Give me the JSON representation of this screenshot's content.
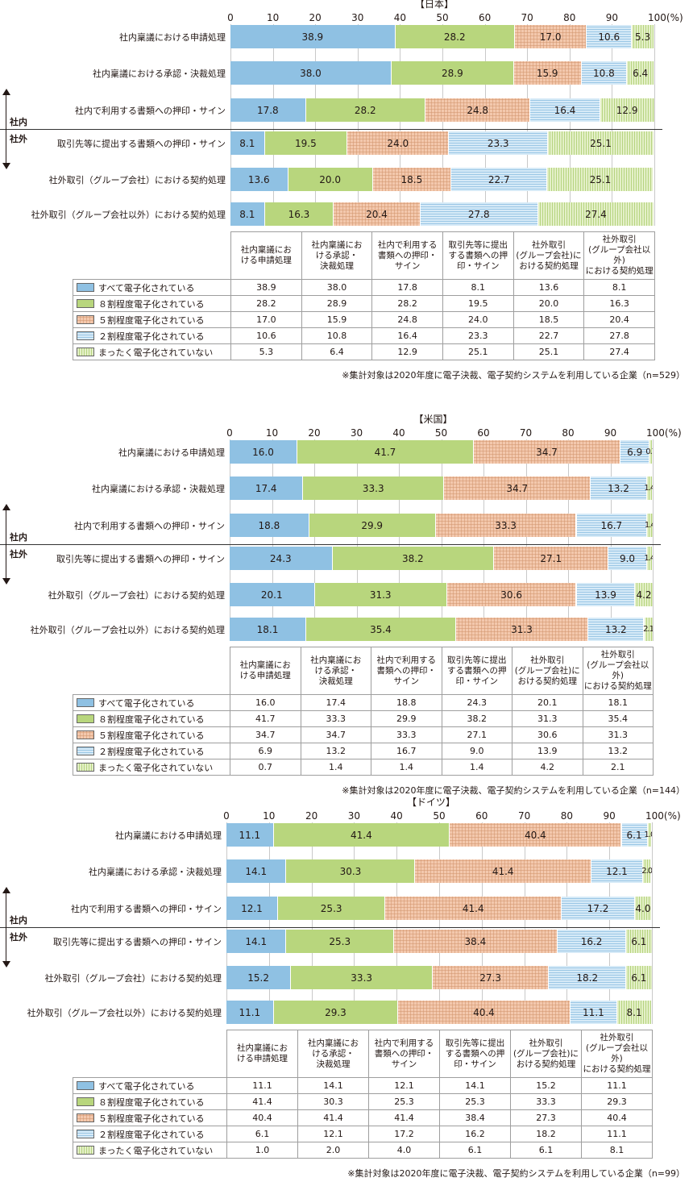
{
  "x_axis": {
    "ticks": [
      "0",
      "10",
      "20",
      "30",
      "40",
      "50",
      "60",
      "70",
      "80",
      "90",
      "100(%)"
    ]
  },
  "inside_label": "社内",
  "outside_label": "社外",
  "table_headers": [
    [
      "社内稟議にお",
      "ける申請処理"
    ],
    [
      "社内稟議にお",
      "ける承認・",
      "決裁処理"
    ],
    [
      "社内で利用する",
      "書類への押印・",
      "サイン"
    ],
    [
      "取引先等に提出",
      "する書類への押",
      "印・サイン"
    ],
    [
      "社外取引",
      "(グループ会社)に",
      "おける契約処理"
    ],
    [
      "社外取引",
      "(グループ会社以外)",
      "における契約処理"
    ]
  ],
  "colors": {
    "s1": "#8fc1e3",
    "s2": "#b8d67d",
    "s3": "#f3c8ad",
    "s4": "#d6eaf7",
    "s5": "#e4f0c8"
  },
  "chart_data": [
    {
      "type": "bar",
      "orientation": "horizontal-stacked",
      "title": "【日本】",
      "categories": [
        "社内稟議における申請処理",
        "社内稟議における承認・決裁処理",
        "社内で利用する書類への押印・サイン",
        "取引先等に提出する書類への押印・サイン",
        "社外取引（グループ会社）における契約処理",
        "社外取引（グループ会社以外）における契約処理"
      ],
      "xlim": [
        0,
        100
      ],
      "series": [
        {
          "name": "すべて電子化されている",
          "values": [
            38.9,
            38.0,
            17.8,
            8.1,
            13.6,
            8.1
          ]
        },
        {
          "name": "８割程度電子化されている",
          "values": [
            28.2,
            28.9,
            28.2,
            19.5,
            20.0,
            16.3
          ]
        },
        {
          "name": "５割程度電子化されている",
          "values": [
            17.0,
            15.9,
            24.8,
            24.0,
            18.5,
            20.4
          ]
        },
        {
          "name": "２割程度電子化されている",
          "values": [
            10.6,
            10.8,
            16.4,
            23.3,
            22.7,
            27.8
          ]
        },
        {
          "name": "まったく電子化されていない",
          "values": [
            5.3,
            6.4,
            12.9,
            25.1,
            25.1,
            27.4
          ]
        }
      ],
      "note": "※集計対象は2020年度に電子決裁、電子契約システムを利用している企業（n=529）"
    },
    {
      "type": "bar",
      "orientation": "horizontal-stacked",
      "title": "【米国】",
      "categories": [
        "社内稟議における申請処理",
        "社内稟議における承認・決裁処理",
        "社内で利用する書類への押印・サイン",
        "取引先等に提出する書類への押印・サイン",
        "社外取引（グループ会社）における契約処理",
        "社外取引（グループ会社以外）における契約処理"
      ],
      "xlim": [
        0,
        100
      ],
      "series": [
        {
          "name": "すべて電子化されている",
          "values": [
            16.0,
            17.4,
            18.8,
            24.3,
            20.1,
            18.1
          ]
        },
        {
          "name": "８割程度電子化されている",
          "values": [
            41.7,
            33.3,
            29.9,
            38.2,
            31.3,
            35.4
          ]
        },
        {
          "name": "５割程度電子化されている",
          "values": [
            34.7,
            34.7,
            33.3,
            27.1,
            30.6,
            31.3
          ]
        },
        {
          "name": "２割程度電子化されている",
          "values": [
            6.9,
            13.2,
            16.7,
            9.0,
            13.9,
            13.2
          ]
        },
        {
          "name": "まったく電子化されていない",
          "values": [
            0.7,
            1.4,
            1.4,
            1.4,
            4.2,
            2.1
          ]
        }
      ],
      "note": "※集計対象は2020年度に電子決裁、電子契約システムを利用している企業（n=144）"
    },
    {
      "type": "bar",
      "orientation": "horizontal-stacked",
      "title": "【ドイツ】",
      "categories": [
        "社内稟議における申請処理",
        "社内稟議における承認・決裁処理",
        "社内で利用する書類への押印・サイン",
        "取引先等に提出する書類への押印・サイン",
        "社外取引（グループ会社）における契約処理",
        "社外取引（グループ会社以外）における契約処理"
      ],
      "xlim": [
        0,
        100
      ],
      "series": [
        {
          "name": "すべて電子化されている",
          "values": [
            11.1,
            14.1,
            12.1,
            14.1,
            15.2,
            11.1
          ]
        },
        {
          "name": "８割程度電子化されている",
          "values": [
            41.4,
            30.3,
            25.3,
            25.3,
            33.3,
            29.3
          ]
        },
        {
          "name": "５割程度電子化されている",
          "values": [
            40.4,
            41.4,
            41.4,
            38.4,
            27.3,
            40.4
          ]
        },
        {
          "name": "２割程度電子化されている",
          "values": [
            6.1,
            12.1,
            17.2,
            16.2,
            18.2,
            11.1
          ]
        },
        {
          "name": "まったく電子化されていない",
          "values": [
            1.0,
            2.0,
            4.0,
            6.1,
            6.1,
            8.1
          ]
        }
      ],
      "note": "※集計対象は2020年度に電子決裁、電子契約システムを利用している企業（n=99）"
    }
  ]
}
